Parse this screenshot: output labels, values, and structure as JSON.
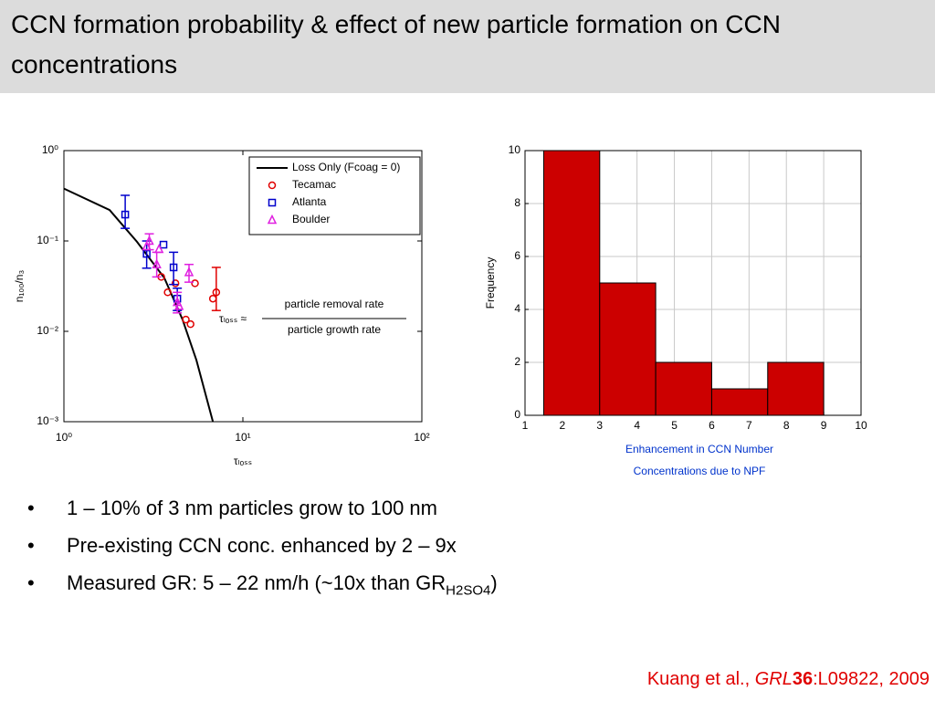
{
  "title": "CCN formation probability & effect of new particle formation on CCN concentrations",
  "chart_data": [
    {
      "type": "scatter",
      "log_x": true,
      "log_y": true,
      "xlabel": "τₗₒₛₛ",
      "ylabel": "n₁₀₀/n₃",
      "xlim": [
        1,
        100
      ],
      "ylim": [
        0.001,
        1
      ],
      "xticks": [
        {
          "value": 1,
          "label": "10⁰"
        },
        {
          "value": 10,
          "label": "10¹"
        },
        {
          "value": 100,
          "label": "10²"
        }
      ],
      "yticks": [
        {
          "value": 0.001,
          "label": "10⁻³"
        },
        {
          "value": 0.01,
          "label": "10⁻²"
        },
        {
          "value": 0.1,
          "label": "10⁻¹"
        },
        {
          "value": 1,
          "label": "10⁰"
        }
      ],
      "legend": "upper right",
      "series": [
        {
          "name": "Loss Only (Fcoag = 0)",
          "color": "#000000",
          "marker": "line",
          "x": [
            1,
            1.8,
            2.56,
            3.64,
            4.6,
            5.5,
            6.8
          ],
          "values": [
            0.38,
            0.22,
            0.098,
            0.039,
            0.0135,
            0.0048,
            0.001
          ]
        },
        {
          "name": "Tecamac",
          "color": "#e00000",
          "marker": "circle",
          "x": [
            3.5,
            3.8,
            4.2,
            4.8,
            5.1,
            5.4,
            6.8,
            7.1
          ],
          "values": [
            0.04,
            0.027,
            0.034,
            0.0135,
            0.012,
            0.034,
            0.023,
            0.027
          ],
          "ylow": [
            null,
            null,
            null,
            null,
            null,
            null,
            null,
            0.017
          ],
          "yhigh": [
            null,
            null,
            null,
            null,
            null,
            null,
            null,
            0.051
          ]
        },
        {
          "name": "Atlanta",
          "color": "#0000cc",
          "marker": "square",
          "x": [
            2.2,
            2.9,
            3.6,
            4.1,
            4.3
          ],
          "values": [
            0.196,
            0.072,
            0.091,
            0.051,
            0.023
          ],
          "ylow": [
            0.138,
            0.05,
            null,
            0.033,
            0.017
          ],
          "yhigh": [
            0.32,
            0.1,
            null,
            0.075,
            0.03
          ]
        },
        {
          "name": "Boulder",
          "color": "#e020e0",
          "marker": "triangle",
          "x": [
            2.9,
            3.0,
            3.3,
            3.4,
            4.3,
            4.4,
            5.0
          ],
          "values": [
            0.087,
            0.1,
            0.055,
            0.081,
            0.021,
            0.019,
            0.045
          ],
          "ylow": [
            null,
            0.08,
            0.04,
            null,
            0.016,
            null,
            0.035
          ],
          "yhigh": [
            null,
            0.12,
            0.075,
            null,
            0.027,
            null,
            0.055
          ]
        }
      ],
      "annotation": {
        "lhs": "τₗₒₛₛ ≈",
        "numerator": "particle removal rate",
        "denominator": "particle growth rate"
      }
    },
    {
      "type": "histogram",
      "grid": true,
      "color": "#cc0000",
      "bins": [
        1.5,
        3,
        4.5,
        6,
        7.5,
        9
      ],
      "counts": [
        10,
        5,
        2,
        1,
        2
      ],
      "xlim": [
        1,
        10
      ],
      "xticks": [
        1,
        2,
        3,
        4,
        5,
        6,
        7,
        8,
        9,
        10
      ],
      "ylim": [
        0,
        10
      ],
      "yticks": [
        0,
        2,
        4,
        6,
        8,
        10
      ],
      "ylabel": "Frequency",
      "xlabel": [
        "Enhancement in CCN Number",
        "Concentrations due to NPF"
      ]
    }
  ],
  "bullets": [
    [
      "1 – 10% of 3 nm particles grow to 100 nm"
    ],
    [
      "Pre-existing CCN conc. enhanced by 2 – 9x"
    ],
    [
      "Measured GR: 5 – 22 nm/h (~10x than GR",
      {
        "sub": "H2SO4"
      },
      ")"
    ]
  ],
  "citation": {
    "authors": "Kuang et al.,",
    "journal": "GRL",
    "volume": "36",
    "rest": ":L09822, 2009"
  }
}
